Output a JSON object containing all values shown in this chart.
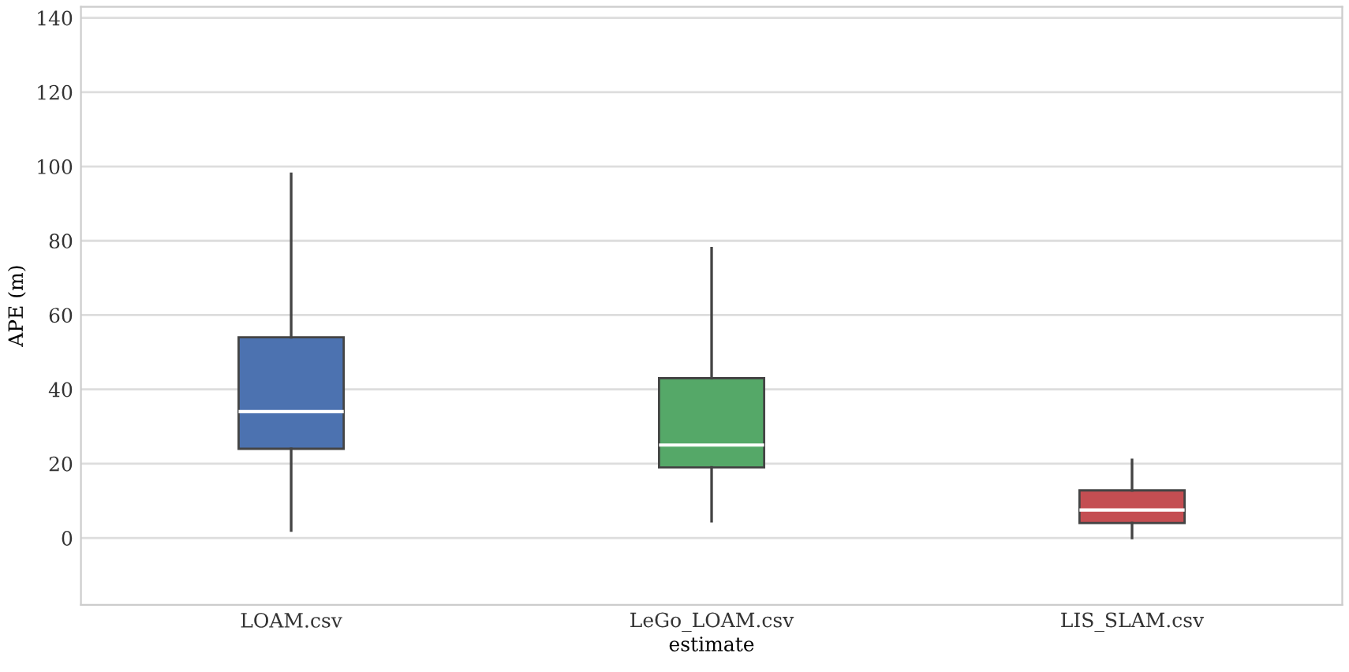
{
  "chart_data": {
    "type": "box",
    "xlabel": "estimate",
    "ylabel": "APE (m)",
    "categories": [
      "LOAM.csv",
      "LeGo_LOAM.csv",
      "LIS_SLAM.csv"
    ],
    "colors": [
      "#4c72b0",
      "#55a868",
      "#c44e52"
    ],
    "boxes": [
      {
        "low": 2,
        "q1": 24,
        "median": 34,
        "q3": 54,
        "high": 98
      },
      {
        "low": 4.5,
        "q1": 19,
        "median": 25,
        "q3": 43,
        "high": 78
      },
      {
        "low": 0,
        "q1": 4,
        "median": 7.5,
        "q3": 12.8,
        "high": 21
      }
    ],
    "ylim": [
      -18,
      143
    ],
    "yticks": [
      0,
      20,
      40,
      60,
      80,
      100,
      120,
      140
    ],
    "grid": "y"
  }
}
